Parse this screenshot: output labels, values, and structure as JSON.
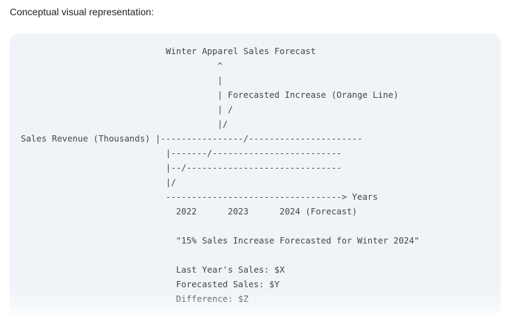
{
  "heading": "Conceptual visual representation:",
  "code_block": {
    "lines": [
      "                            Winter Apparel Sales Forecast",
      "                                      ^",
      "                                      |",
      "                                      | Forecasted Increase (Orange Line)",
      "                                      | /",
      "                                      |/",
      "Sales Revenue (Thousands) |----------------/----------------------",
      "                            |-------/-------------------------",
      "                            |--/------------------------------",
      "                            |/",
      "                            ----------------------------------> Years",
      "                              2022      2023      2024 (Forecast)",
      "",
      "                              \"15% Sales Increase Forecasted for Winter 2024\"",
      "",
      "                              Last Year's Sales: $X",
      "                              Forecasted Sales: $Y",
      "                              Difference: $Z"
    ]
  }
}
